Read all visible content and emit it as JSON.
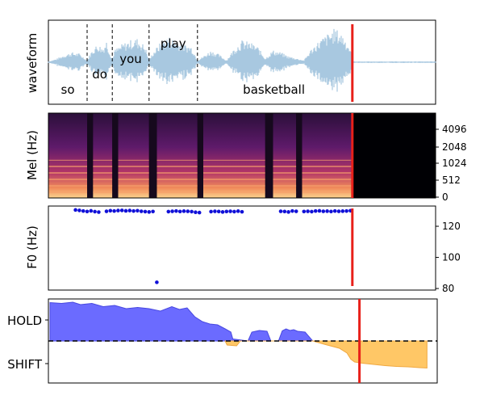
{
  "chart_data": [
    {
      "type": "area",
      "panel": "waveform",
      "ylabel": "waveform",
      "words": [
        {
          "text": "so",
          "start": 0.0,
          "end": 0.1
        },
        {
          "text": "do",
          "start": 0.1,
          "end": 0.165
        },
        {
          "text": "you",
          "start": 0.165,
          "end": 0.26
        },
        {
          "text": "play",
          "start": 0.26,
          "end": 0.385
        },
        {
          "text": "basketball",
          "start": 0.385,
          "end": 0.78
        }
      ],
      "boundaries": [
        0.1,
        0.165,
        0.26,
        0.385
      ],
      "cursor": 0.785,
      "envelope": [
        [
          0.0,
          0.02
        ],
        [
          0.02,
          0.08
        ],
        [
          0.04,
          0.18
        ],
        [
          0.06,
          0.25
        ],
        [
          0.08,
          0.22
        ],
        [
          0.1,
          0.05
        ],
        [
          0.11,
          0.25
        ],
        [
          0.12,
          0.4
        ],
        [
          0.13,
          0.45
        ],
        [
          0.14,
          0.35
        ],
        [
          0.15,
          0.55
        ],
        [
          0.165,
          0.06
        ],
        [
          0.17,
          0.3
        ],
        [
          0.19,
          0.45
        ],
        [
          0.21,
          0.55
        ],
        [
          0.23,
          0.6
        ],
        [
          0.25,
          0.4
        ],
        [
          0.26,
          0.05
        ],
        [
          0.27,
          0.25
        ],
        [
          0.29,
          0.5
        ],
        [
          0.31,
          0.65
        ],
        [
          0.33,
          0.55
        ],
        [
          0.35,
          0.45
        ],
        [
          0.37,
          0.4
        ],
        [
          0.385,
          0.05
        ],
        [
          0.4,
          0.15
        ],
        [
          0.42,
          0.3
        ],
        [
          0.44,
          0.2
        ],
        [
          0.46,
          0.05
        ],
        [
          0.48,
          0.35
        ],
        [
          0.5,
          0.55
        ],
        [
          0.52,
          0.5
        ],
        [
          0.54,
          0.4
        ],
        [
          0.56,
          0.1
        ],
        [
          0.58,
          0.3
        ],
        [
          0.6,
          0.25
        ],
        [
          0.62,
          0.15
        ],
        [
          0.64,
          0.1
        ],
        [
          0.66,
          0.05
        ],
        [
          0.68,
          0.35
        ],
        [
          0.7,
          0.55
        ],
        [
          0.72,
          0.7
        ],
        [
          0.74,
          0.85
        ],
        [
          0.76,
          0.7
        ],
        [
          0.78,
          0.35
        ],
        [
          0.785,
          0.02
        ],
        [
          1.0,
          0.02
        ]
      ]
    },
    {
      "type": "heatmap",
      "panel": "mel-spectrogram",
      "ylabel": "Mel (Hz)",
      "ytick_labels": [
        "4096",
        "2048",
        "1024",
        "512",
        "0"
      ],
      "cursor": 0.785
    },
    {
      "type": "scatter",
      "panel": "f0",
      "ylabel": "F0 (Hz)",
      "ytick_labels": [
        "120",
        "100",
        "80"
      ],
      "ylim": [
        79,
        133
      ],
      "cursor": 0.785,
      "points": [
        [
          0.07,
          130.5
        ],
        [
          0.08,
          130.2
        ],
        [
          0.09,
          129.8
        ],
        [
          0.1,
          129.5
        ],
        [
          0.11,
          129.9
        ],
        [
          0.12,
          129.4
        ],
        [
          0.13,
          129.1
        ],
        [
          0.15,
          129.6
        ],
        [
          0.16,
          130.0
        ],
        [
          0.17,
          129.8
        ],
        [
          0.18,
          130.1
        ],
        [
          0.19,
          130.2
        ],
        [
          0.2,
          129.9
        ],
        [
          0.21,
          130.1
        ],
        [
          0.22,
          129.8
        ],
        [
          0.23,
          130.0
        ],
        [
          0.24,
          129.6
        ],
        [
          0.25,
          129.4
        ],
        [
          0.26,
          129.2
        ],
        [
          0.27,
          129.5
        ],
        [
          0.28,
          84.0
        ],
        [
          0.31,
          129.4
        ],
        [
          0.32,
          129.6
        ],
        [
          0.33,
          129.8
        ],
        [
          0.34,
          129.5
        ],
        [
          0.35,
          129.7
        ],
        [
          0.36,
          129.6
        ],
        [
          0.37,
          129.4
        ],
        [
          0.38,
          129.0
        ],
        [
          0.39,
          128.8
        ],
        [
          0.42,
          129.4
        ],
        [
          0.43,
          129.6
        ],
        [
          0.44,
          129.5
        ],
        [
          0.45,
          129.2
        ],
        [
          0.46,
          129.5
        ],
        [
          0.47,
          129.6
        ],
        [
          0.48,
          129.4
        ],
        [
          0.49,
          129.7
        ],
        [
          0.5,
          129.3
        ],
        [
          0.6,
          129.6
        ],
        [
          0.61,
          129.5
        ],
        [
          0.62,
          129.2
        ],
        [
          0.63,
          129.8
        ],
        [
          0.64,
          129.6
        ],
        [
          0.66,
          129.5
        ],
        [
          0.67,
          129.6
        ],
        [
          0.68,
          129.4
        ],
        [
          0.69,
          129.8
        ],
        [
          0.7,
          129.9
        ],
        [
          0.71,
          129.6
        ],
        [
          0.72,
          129.7
        ],
        [
          0.73,
          129.5
        ],
        [
          0.74,
          129.8
        ],
        [
          0.75,
          129.6
        ],
        [
          0.76,
          129.7
        ],
        [
          0.77,
          129.8
        ],
        [
          0.78,
          130.0
        ]
      ]
    },
    {
      "type": "area",
      "panel": "hold-shift",
      "ytick_labels": [
        "HOLD",
        "SHIFT"
      ],
      "cursor": 0.8,
      "hold": [
        [
          0.0,
          0.95
        ],
        [
          0.03,
          0.93
        ],
        [
          0.06,
          0.96
        ],
        [
          0.08,
          0.9
        ],
        [
          0.11,
          0.93
        ],
        [
          0.14,
          0.85
        ],
        [
          0.17,
          0.88
        ],
        [
          0.2,
          0.8
        ],
        [
          0.23,
          0.83
        ],
        [
          0.26,
          0.8
        ],
        [
          0.29,
          0.74
        ],
        [
          0.32,
          0.85
        ],
        [
          0.34,
          0.78
        ],
        [
          0.36,
          0.82
        ],
        [
          0.38,
          0.6
        ],
        [
          0.4,
          0.48
        ],
        [
          0.42,
          0.42
        ],
        [
          0.44,
          0.4
        ],
        [
          0.46,
          0.3
        ],
        [
          0.475,
          0.22
        ],
        [
          0.48,
          0.05
        ],
        [
          0.52,
          0.0
        ],
        [
          0.53,
          0.22
        ],
        [
          0.54,
          0.24
        ],
        [
          0.55,
          0.26
        ],
        [
          0.56,
          0.25
        ],
        [
          0.57,
          0.24
        ],
        [
          0.58,
          0.0
        ],
        [
          0.6,
          0.0
        ],
        [
          0.61,
          0.25
        ],
        [
          0.62,
          0.3
        ],
        [
          0.63,
          0.26
        ],
        [
          0.64,
          0.28
        ],
        [
          0.65,
          0.24
        ],
        [
          0.67,
          0.22
        ],
        [
          0.69,
          0.0
        ]
      ],
      "shift": [
        [
          0.46,
          0.0
        ],
        [
          0.465,
          -0.1
        ],
        [
          0.49,
          -0.12
        ],
        [
          0.5,
          0.0
        ],
        [
          0.69,
          0.0
        ],
        [
          0.72,
          -0.08
        ],
        [
          0.76,
          -0.18
        ],
        [
          0.78,
          -0.3
        ],
        [
          0.79,
          -0.45
        ],
        [
          0.8,
          -0.52
        ],
        [
          0.82,
          -0.55
        ],
        [
          0.85,
          -0.58
        ],
        [
          0.88,
          -0.61
        ],
        [
          0.91,
          -0.63
        ],
        [
          0.94,
          -0.64
        ],
        [
          0.97,
          -0.66
        ],
        [
          0.99,
          -0.67
        ]
      ],
      "colors": {
        "hold": "#6b6bff",
        "shift": "#ffc766",
        "cursor": "#e8201a"
      }
    }
  ]
}
